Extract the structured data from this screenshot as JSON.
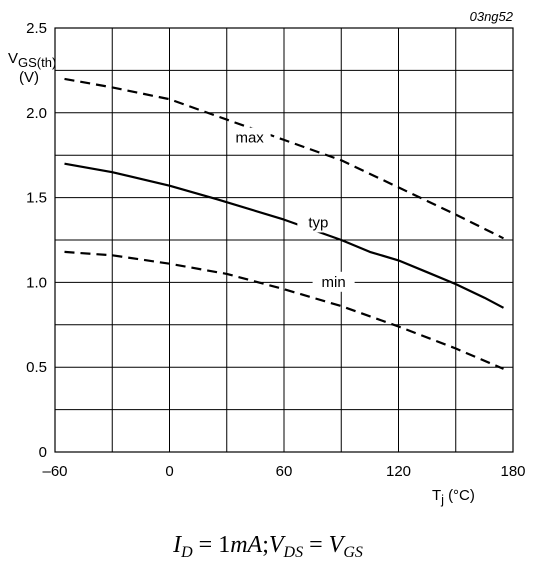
{
  "chart_data": {
    "type": "line",
    "figure_code": "03ng52",
    "ylabel": {
      "main": "V",
      "sub": "GS(th)",
      "unit": "(V)"
    },
    "xlabel": {
      "main": "T",
      "sub": "j",
      "unit": "(°C)"
    },
    "xlim": [
      -60,
      180
    ],
    "ylim": [
      0,
      2.5
    ],
    "x_major_ticks": [
      -60,
      0,
      60,
      120,
      180
    ],
    "x_tick_labels": [
      "–60",
      "0",
      "60",
      "120",
      "180"
    ],
    "x_grid": [
      -60,
      -30,
      0,
      30,
      60,
      90,
      120,
      150,
      180
    ],
    "y_major_ticks": [
      0,
      0.5,
      1.0,
      1.5,
      2.0,
      2.5
    ],
    "y_tick_labels": [
      "0",
      "0.5",
      "1.0",
      "1.5",
      "2.0",
      "2.5"
    ],
    "y_grid": [
      0,
      0.25,
      0.5,
      0.75,
      1.0,
      1.25,
      1.5,
      1.75,
      2.0,
      2.25,
      2.5
    ],
    "grid": true,
    "series": [
      {
        "name": "max",
        "style": "dashed",
        "color": "#000000",
        "label_pos": [
          42,
          1.83
        ],
        "points": [
          [
            -55,
            2.2
          ],
          [
            -30,
            2.15
          ],
          [
            0,
            2.08
          ],
          [
            25,
            1.98
          ],
          [
            60,
            1.84
          ],
          [
            90,
            1.72
          ],
          [
            120,
            1.56
          ],
          [
            150,
            1.4
          ],
          [
            175,
            1.26
          ]
        ]
      },
      {
        "name": "typ",
        "style": "solid",
        "color": "#000000",
        "label_pos": [
          78,
          1.33
        ],
        "points": [
          [
            -55,
            1.7
          ],
          [
            -30,
            1.65
          ],
          [
            0,
            1.57
          ],
          [
            25,
            1.49
          ],
          [
            60,
            1.37
          ],
          [
            90,
            1.25
          ],
          [
            105,
            1.18
          ],
          [
            120,
            1.13
          ],
          [
            135,
            1.06
          ],
          [
            150,
            0.99
          ],
          [
            165,
            0.91
          ],
          [
            175,
            0.85
          ]
        ]
      },
      {
        "name": "min",
        "style": "dashed",
        "color": "#000000",
        "label_pos": [
          86,
          0.98
        ],
        "points": [
          [
            -55,
            1.18
          ],
          [
            -30,
            1.16
          ],
          [
            0,
            1.11
          ],
          [
            30,
            1.05
          ],
          [
            60,
            0.96
          ],
          [
            90,
            0.86
          ],
          [
            120,
            0.74
          ],
          [
            150,
            0.61
          ],
          [
            175,
            0.49
          ]
        ]
      }
    ]
  },
  "caption": {
    "id_main": "I",
    "id_sub": "D",
    "id_rhs": " = 1",
    "id_unit": "mA",
    "sep": ";",
    "vds_main": "V",
    "vds_sub": "DS",
    "eq": " = ",
    "vgs_main": "V",
    "vgs_sub": "GS"
  }
}
